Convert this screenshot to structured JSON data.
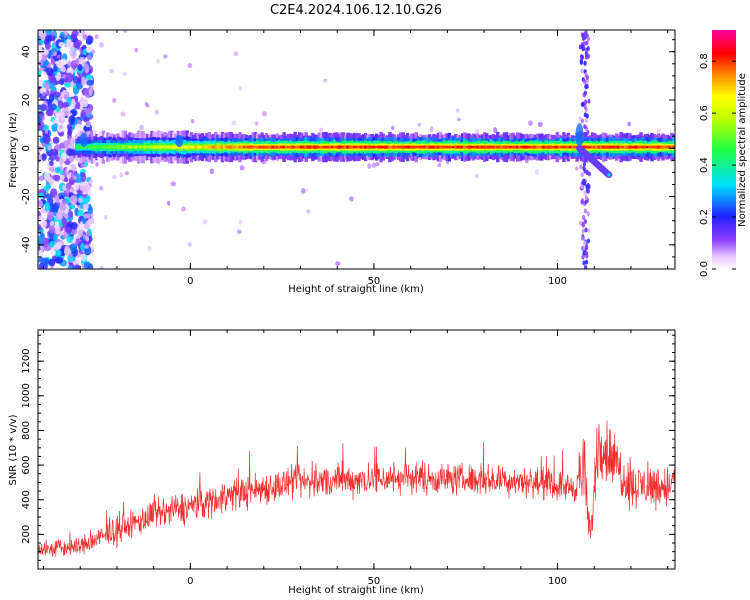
{
  "title": "C2E4.2024.106.12.10.G26",
  "colors": {
    "snr_line": "#f03030",
    "axis": "#000000",
    "background": "#ffffff"
  },
  "chart_data": [
    {
      "type": "heatmap",
      "title": "C2E4.2024.106.12.10.G26",
      "xlabel": "Height of straight line (km)",
      "ylabel": "Frequency (Hz)",
      "xlim": [
        -41.5,
        132
      ],
      "ylim": [
        -50,
        49
      ],
      "x_ticks": [
        0,
        50,
        100
      ],
      "y_ticks": [
        -40,
        -20,
        0,
        20,
        40
      ],
      "colorbar": {
        "label": "Normalized spectral amplitude",
        "ticks": [
          0.0,
          0.2,
          0.4,
          0.6,
          0.8
        ],
        "range": [
          0,
          0.92
        ],
        "colormap": "rainbow (white-violet-blue-cyan-green-yellow-red-magenta)"
      },
      "features": [
        {
          "name": "main trace",
          "x_range": [
            -31,
            132
          ],
          "frequency": 0.5,
          "peak_amplitude": 0.85
        },
        {
          "name": "low-height noise",
          "x_range": [
            -41.5,
            -30
          ],
          "frequency_range": [
            -50,
            49
          ],
          "amplitude": 0.3
        },
        {
          "name": "vertical streak",
          "x": 107.5,
          "frequency_range": [
            -50,
            49
          ],
          "amplitude": 0.15
        },
        {
          "name": "dipping branch",
          "x_range": [
            106,
            114
          ],
          "frequency_range": [
            -11,
            0
          ]
        }
      ]
    },
    {
      "type": "line",
      "xlabel": "Height of straight line (km)",
      "ylabel": "SNR (10 * v/v)",
      "xlim": [
        -41.5,
        132
      ],
      "ylim": [
        0,
        1380
      ],
      "x_ticks": [
        0,
        50,
        100
      ],
      "y_ticks": [
        200,
        400,
        600,
        800,
        1000,
        1200
      ],
      "series": [
        {
          "x": [
            -41,
            -30,
            -20,
            -10,
            0,
            10,
            20,
            30,
            40,
            50,
            60,
            70,
            80,
            90,
            100,
            105,
            107,
            109,
            111,
            120,
            132
          ],
          "mean": [
            110,
            130,
            220,
            310,
            360,
            420,
            470,
            500,
            510,
            520,
            530,
            520,
            515,
            510,
            480,
            470,
            600,
            160,
            750,
            480,
            480
          ],
          "spread": [
            80,
            90,
            120,
            140,
            150,
            150,
            150,
            150,
            150,
            150,
            150,
            140,
            140,
            140,
            130,
            130,
            400,
            120,
            350,
            200,
            200
          ]
        }
      ],
      "grid": false
    }
  ]
}
